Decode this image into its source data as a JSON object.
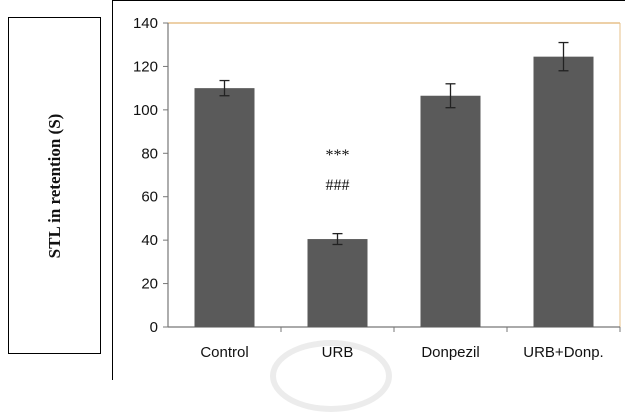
{
  "y_axis_label": "STL in retention (S)",
  "colors": {
    "bar": "#5a5a5a",
    "plot_top_border": "#e7c08a",
    "axis": "#777777"
  },
  "chart_data": {
    "type": "bar",
    "categories": [
      "Control",
      "URB",
      "Donpezil",
      "URB+Donp."
    ],
    "values": [
      110,
      40.5,
      106.5,
      124.5
    ],
    "errors": [
      3.5,
      2.5,
      5.5,
      6.5
    ],
    "annotations": [
      {
        "category": "URB",
        "lines": [
          "***",
          "###"
        ]
      }
    ],
    "ylabel": "STL in retention (S)",
    "ylim": [
      0,
      140
    ],
    "yticks": [
      0,
      20,
      40,
      60,
      80,
      100,
      120,
      140
    ],
    "grid": false
  }
}
